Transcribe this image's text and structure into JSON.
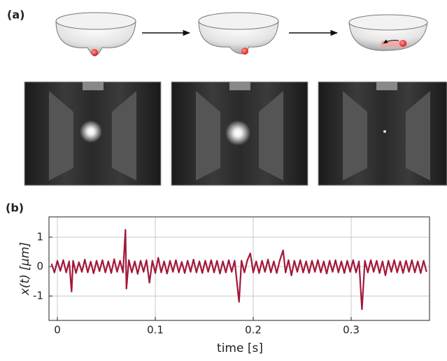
{
  "panel_labels": [
    "(a)",
    "(b)"
  ],
  "chart_data": {
    "type": "line",
    "xlabel": "time [s]",
    "ylabel": "x(t)  [μm]",
    "color": "#a3173a",
    "xlim": [
      -0.0086,
      0.38
    ],
    "ylim": [
      -1.83,
      1.69
    ],
    "xticks": [
      0,
      0.1,
      0.2,
      0.3
    ],
    "yticks": [
      -1,
      0,
      1
    ],
    "grid": true,
    "x": [
      -0.006,
      -0.003,
      0,
      0.003,
      0.006,
      0.009,
      0.012,
      0.0145,
      0.016,
      0.019,
      0.022,
      0.025,
      0.028,
      0.031,
      0.034,
      0.037,
      0.04,
      0.043,
      0.046,
      0.049,
      0.052,
      0.055,
      0.058,
      0.061,
      0.064,
      0.067,
      0.0695,
      0.0705,
      0.073,
      0.076,
      0.079,
      0.082,
      0.085,
      0.088,
      0.091,
      0.094,
      0.097,
      0.1,
      0.103,
      0.106,
      0.109,
      0.112,
      0.115,
      0.118,
      0.121,
      0.124,
      0.127,
      0.13,
      0.133,
      0.136,
      0.139,
      0.142,
      0.145,
      0.148,
      0.151,
      0.154,
      0.157,
      0.16,
      0.163,
      0.166,
      0.169,
      0.172,
      0.175,
      0.178,
      0.181,
      0.1855,
      0.188,
      0.191,
      0.194,
      0.197,
      0.2,
      0.203,
      0.206,
      0.209,
      0.212,
      0.215,
      0.218,
      0.221,
      0.224,
      0.227,
      0.2305,
      0.233,
      0.236,
      0.239,
      0.242,
      0.245,
      0.248,
      0.251,
      0.254,
      0.257,
      0.26,
      0.263,
      0.266,
      0.269,
      0.272,
      0.275,
      0.278,
      0.281,
      0.284,
      0.287,
      0.29,
      0.293,
      0.296,
      0.299,
      0.302,
      0.305,
      0.308,
      0.311,
      0.314,
      0.317,
      0.32,
      0.323,
      0.326,
      0.329,
      0.332,
      0.335,
      0.338,
      0.341,
      0.344,
      0.347,
      0.35,
      0.353,
      0.356,
      0.359,
      0.362,
      0.365,
      0.368,
      0.371,
      0.374,
      0.377
    ],
    "values": [
      0.1,
      -0.2,
      0.2,
      -0.15,
      0.22,
      -0.2,
      0.18,
      -0.85,
      0.2,
      -0.22,
      0.15,
      -0.18,
      0.24,
      -0.2,
      0.17,
      -0.23,
      0.2,
      -0.16,
      0.22,
      -0.2,
      0.18,
      -0.22,
      0.25,
      -0.18,
      0.2,
      -0.2,
      1.25,
      -0.75,
      0.22,
      -0.2,
      0.18,
      -0.25,
      0.2,
      -0.18,
      0.22,
      -0.55,
      0.2,
      -0.22,
      0.3,
      -0.2,
      0.18,
      -0.24,
      0.2,
      -0.18,
      0.22,
      -0.2,
      0.16,
      -0.22,
      0.2,
      -0.18,
      0.24,
      -0.2,
      0.18,
      -0.22,
      0.2,
      -0.18,
      0.22,
      -0.2,
      0.2,
      -0.24,
      0.18,
      -0.2,
      0.22,
      -0.18,
      0.2,
      -1.2,
      0.2,
      -0.2,
      0.22,
      0.45,
      -0.2,
      0.18,
      -0.22,
      0.2,
      -0.18,
      0.24,
      -0.2,
      0.18,
      -0.22,
      0.2,
      0.55,
      -0.2,
      0.22,
      -0.3,
      0.2,
      -0.18,
      0.22,
      -0.2,
      0.18,
      -0.22,
      0.2,
      -0.18,
      0.22,
      -0.2,
      0.18,
      -0.24,
      0.2,
      -0.18,
      0.22,
      -0.2,
      0.18,
      -0.22,
      0.2,
      -0.18,
      0.22,
      -0.2,
      0.18,
      -1.45,
      0.2,
      -0.2,
      0.22,
      -0.18,
      0.2,
      -0.22,
      0.18,
      -0.3,
      0.2,
      -0.18,
      0.22,
      -0.2,
      0.18,
      -0.22,
      0.2,
      -0.18,
      0.22,
      -0.2,
      0.18,
      -0.22,
      0.2,
      -0.18
    ]
  }
}
